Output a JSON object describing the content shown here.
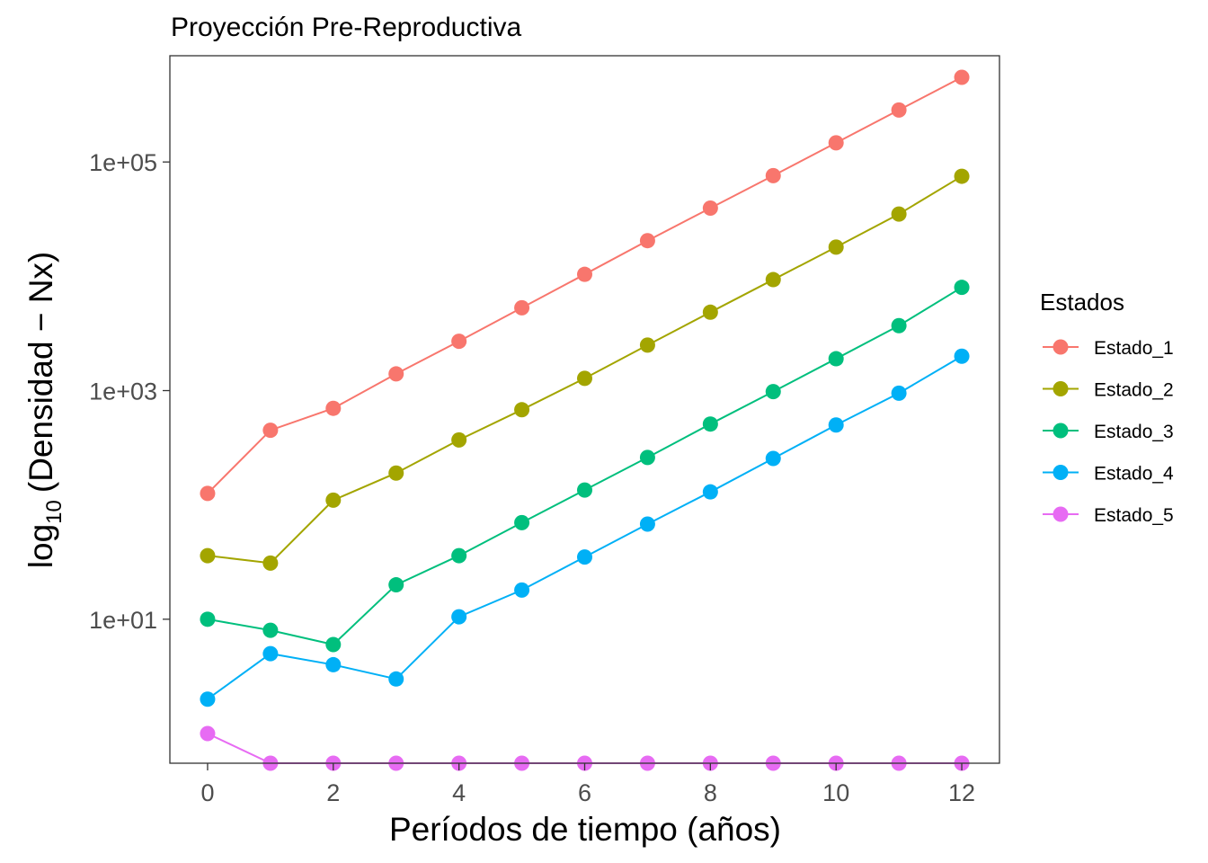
{
  "chart_data": {
    "type": "line",
    "title": "Proyección Pre-Reproductiva",
    "xlabel": "Períodos de tiempo (años)",
    "ylabel": {
      "prefix": "log",
      "subscript": "10",
      "suffix": "(Densidad − Nx)"
    },
    "x": [
      0,
      1,
      2,
      3,
      4,
      5,
      6,
      7,
      8,
      9,
      10,
      11,
      12
    ],
    "xticks": [
      0,
      2,
      4,
      6,
      8,
      10,
      12
    ],
    "xlim": [
      -0.6,
      12.6
    ],
    "yscale": "log10",
    "ylim": [
      0.55,
      850000
    ],
    "yticks": [
      10,
      1000,
      100000
    ],
    "ytick_labels": [
      "1e+01",
      "1e+03",
      "1e+05"
    ],
    "grid": false,
    "legend": {
      "title": "Estados",
      "position": "right"
    },
    "series": [
      {
        "name": "Estado_1",
        "color": "#F8766D",
        "values": [
          126,
          450,
          700,
          1400,
          2700,
          5300,
          10400,
          20500,
          39500,
          76000,
          147000,
          285000,
          550000
        ]
      },
      {
        "name": "Estado_2",
        "color": "#A3A500",
        "values": [
          36,
          31,
          110,
          190,
          370,
          680,
          1280,
          2500,
          4850,
          9350,
          18000,
          35000,
          75000
        ]
      },
      {
        "name": "Estado_3",
        "color": "#00BF7D",
        "values": [
          10,
          8,
          6,
          20,
          36,
          70,
          135,
          260,
          510,
          980,
          1900,
          3700,
          8000
        ]
      },
      {
        "name": "Estado_4",
        "color": "#00B0F6",
        "values": [
          2,
          5,
          4,
          3,
          10.5,
          18,
          35,
          68,
          130,
          255,
          500,
          950,
          2000
        ]
      },
      {
        "name": "Estado_5",
        "color": "#E76BF3",
        "values": [
          1,
          0.55,
          0.55,
          0.55,
          0.55,
          0.55,
          0.55,
          0.55,
          0.55,
          0.55,
          0.55,
          0.55,
          0.55
        ]
      }
    ]
  }
}
